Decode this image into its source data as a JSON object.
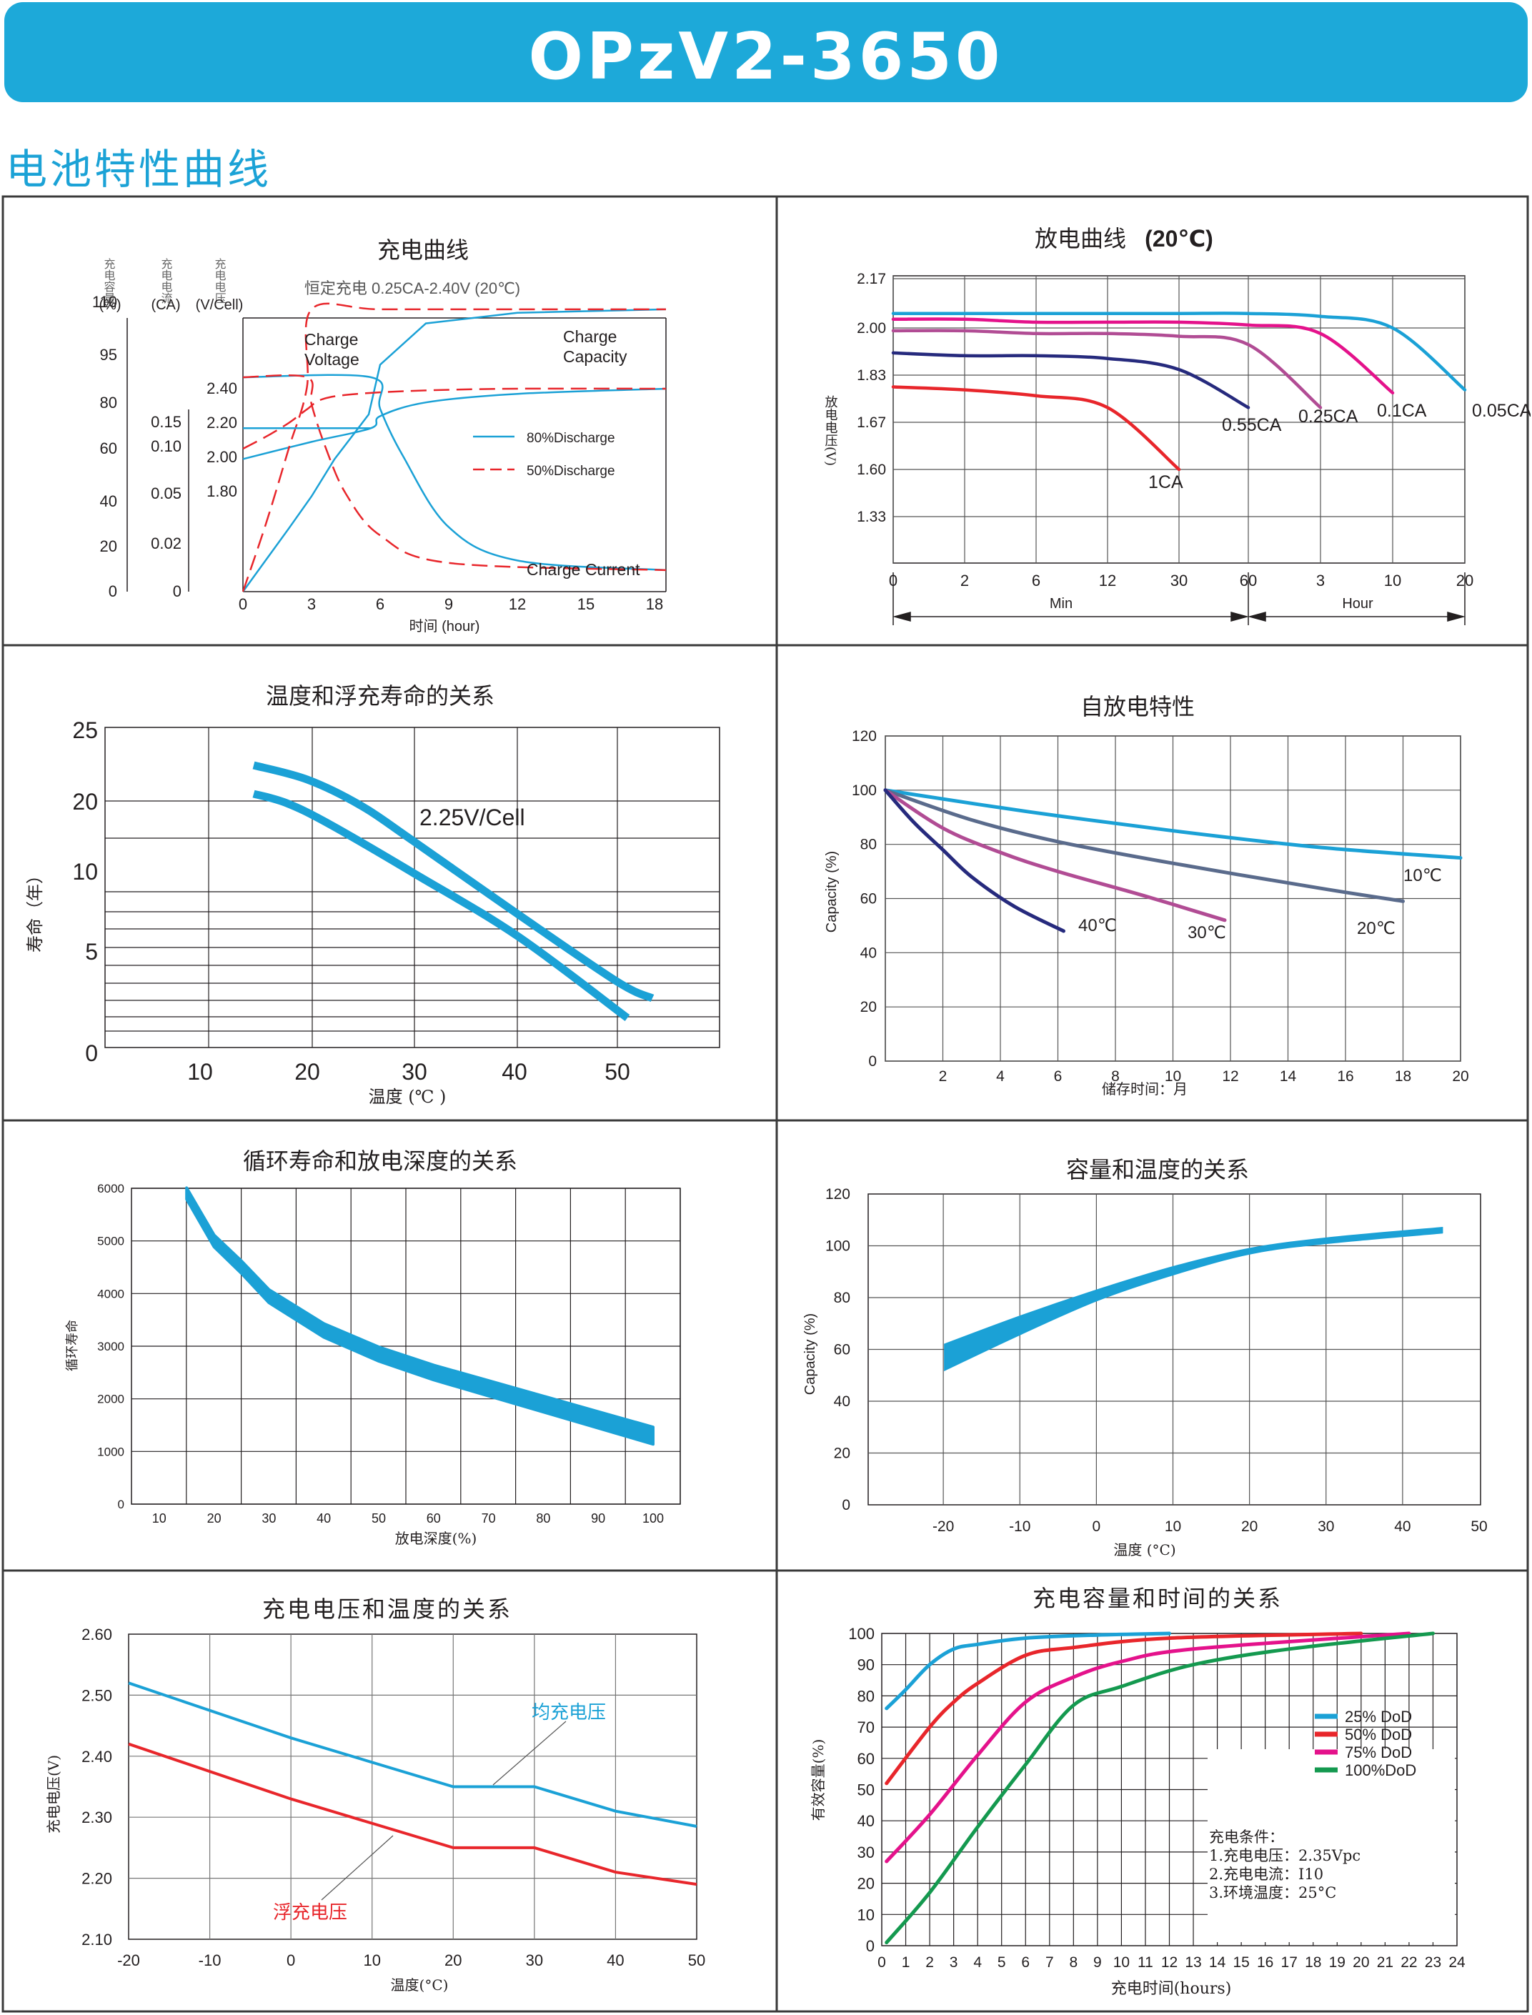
{
  "header": {
    "title": "OPzV2-3650"
  },
  "section": {
    "title": "电池特性曲线"
  },
  "colors": {
    "banner": "#1da9d9",
    "section_title": "#1ba2d6",
    "blue": "#1ba1d6",
    "red": "#e8262b",
    "magenta": "#e4128b",
    "green": "#14994f",
    "navy": "#262a7d",
    "purple": "#b14c94",
    "slate": "#5a6b8c"
  },
  "charts": {
    "charge": {
      "title": "充电曲线",
      "subtitle": "恒定充电 0.25CA-2.40V  (20℃)",
      "xlabel": "时间 (hour)",
      "axis_names": [
        "充电容量",
        "充电电流",
        "充电电压"
      ],
      "axis_units": [
        "(%)",
        "(CA)",
        "(V/Cell)"
      ],
      "cap_ticks": [
        "110",
        "95",
        "80",
        "60",
        "40",
        "20",
        "0"
      ],
      "cur_ticks": [
        "0.15",
        "0.10",
        "0.05",
        "0.02",
        "0"
      ],
      "volt_ticks": [
        "2.40",
        "2.20",
        "2.00",
        "1.80"
      ],
      "x_ticks": [
        "0",
        "3",
        "6",
        "9",
        "12",
        "15",
        "18"
      ],
      "ann_voltage": [
        "Charge",
        "Voltage"
      ],
      "ann_capacity": [
        "Charge",
        "Capacity"
      ],
      "ann_current": "Charge Current",
      "legend": [
        "80%Discharge",
        "50%Discharge"
      ]
    },
    "discharge": {
      "title": "放电曲线",
      "title_suffix": "(20℃)",
      "ylabel": "放电电压(V)",
      "y_ticks": [
        "2.17",
        "2.00",
        "1.83",
        "1.67",
        "1.60",
        "1.33"
      ],
      "x_ticks": [
        "0",
        "2",
        "6",
        "12",
        "30",
        "60",
        "3",
        "10",
        "20"
      ],
      "units": [
        "Min",
        "Hour"
      ],
      "curve_labels": [
        "0.05CA",
        "0.1CA",
        "0.25CA",
        "0.55CA",
        "1CA"
      ]
    },
    "float_life": {
      "title": "温度和浮充寿命的关系",
      "ylabel": "寿命（年）",
      "xlabel": "温度 (℃ )",
      "y_ticks": [
        "25",
        "20",
        "10",
        "5",
        "0"
      ],
      "x_ticks": [
        "10",
        "20",
        "30",
        "40",
        "50"
      ],
      "annotation": "2.25V/Cell"
    },
    "self_discharge": {
      "title": "自放电特性",
      "ylabel": "Capacity (%)",
      "xlabel": "储存时间：月",
      "y_ticks": [
        "120",
        "100",
        "80",
        "60",
        "40",
        "20",
        "0"
      ],
      "x_ticks": [
        "2",
        "4",
        "6",
        "8",
        "10",
        "12",
        "14",
        "16",
        "18",
        "20"
      ],
      "curve_labels": [
        "10℃",
        "20℃",
        "30℃",
        "40℃"
      ]
    },
    "cycle_life": {
      "title": "循环寿命和放电深度的关系",
      "ylabel": "循环寿命",
      "xlabel": "放电深度(%)",
      "y_ticks": [
        "6000",
        "5000",
        "4000",
        "3000",
        "2000",
        "1000",
        "0"
      ],
      "x_ticks": [
        "10",
        "20",
        "30",
        "40",
        "50",
        "60",
        "70",
        "80",
        "90",
        "100"
      ]
    },
    "capacity_temp": {
      "title": "容量和温度的关系",
      "ylabel": "Capacity (%)",
      "xlabel": "温度 (°C)",
      "y_ticks": [
        "120",
        "100",
        "80",
        "60",
        "40",
        "20",
        "0"
      ],
      "x_ticks": [
        "-20",
        "-10",
        "0",
        "10",
        "20",
        "30",
        "40",
        "50"
      ]
    },
    "voltage_temp": {
      "title": "充电电压和温度的关系",
      "ylabel": "充电电压(V)",
      "xlabel": "温度(°C)",
      "y_ticks": [
        "2.60",
        "2.50",
        "2.40",
        "2.30",
        "2.20",
        "2.10"
      ],
      "x_ticks": [
        "-20",
        "-10",
        "0",
        "10",
        "20",
        "30",
        "40",
        "50"
      ],
      "labels": [
        "均充电压",
        "浮充电压"
      ]
    },
    "capacity_time": {
      "title": "充电容量和时间的关系",
      "ylabel": "有效容量(%)",
      "xlabel": "充电时间(hours)",
      "y_ticks": [
        "100",
        "90",
        "80",
        "70",
        "60",
        "50",
        "40",
        "30",
        "20",
        "10",
        "0"
      ],
      "x_ticks": [
        "0",
        "1",
        "2",
        "3",
        "4",
        "5",
        "6",
        "7",
        "8",
        "9",
        "10",
        "11",
        "12",
        "13",
        "14",
        "15",
        "16",
        "17",
        "18",
        "19",
        "20",
        "21",
        "22",
        "23",
        "24"
      ],
      "legend": [
        "25%  DoD",
        "50%  DoD",
        "75%  DoD",
        "100%DoD"
      ],
      "conditions": [
        "充电条件：",
        "1.充电电压：2.35Vpc",
        "2.充电电流：I10",
        "3.环境温度：25°C"
      ]
    }
  },
  "chart_data": [
    {
      "type": "line",
      "title": "充电曲线",
      "subtitle": "恒定充电 0.25CA-2.40V  (20℃)",
      "xlabel": "时间 (hour)",
      "xlim": [
        0,
        18.5
      ],
      "series": [
        {
          "name": "80%Discharge",
          "quantity": "Charge Voltage (V/Cell)",
          "x": [
            0,
            3,
            5.6,
            6,
            8,
            12,
            18.5
          ],
          "values": [
            1.99,
            2.09,
            2.17,
            2.24,
            2.32,
            2.37,
            2.4
          ]
        },
        {
          "name": "80%Discharge",
          "quantity": "Charge Capacity (%)",
          "x": [
            0,
            1,
            2,
            3,
            4,
            5.5,
            6,
            8,
            12,
            18.5
          ],
          "values": [
            0,
            14,
            28,
            42,
            56,
            75,
            92,
            104,
            107,
            108
          ]
        },
        {
          "name": "80%Discharge",
          "quantity": "Charge Current (CA)",
          "x": [
            0,
            5.6,
            6,
            7,
            9,
            12,
            18.5
          ],
          "values": [
            0.25,
            0.25,
            0.18,
            0.09,
            0.03,
            0.013,
            0.009
          ]
        },
        {
          "name": "50%Discharge",
          "quantity": "Charge Voltage (V/Cell)",
          "x": [
            0,
            1,
            2,
            2.8,
            3.5,
            5,
            8,
            12,
            18.5
          ],
          "values": [
            2.05,
            2.12,
            2.2,
            2.28,
            2.34,
            2.37,
            2.39,
            2.4,
            2.4
          ]
        },
        {
          "name": "50%Discharge",
          "quantity": "Charge Capacity (%)",
          "x": [
            0,
            1,
            2,
            2.8,
            3,
            6,
            12,
            18.5
          ],
          "values": [
            0,
            30,
            60,
            85,
            108,
            108,
            108,
            108
          ]
        },
        {
          "name": "50%Discharge",
          "quantity": "Charge Current (CA)",
          "x": [
            0,
            2.8,
            3,
            3.6,
            4.5,
            6,
            9,
            18.5
          ],
          "values": [
            0.25,
            0.25,
            0.19,
            0.1,
            0.05,
            0.025,
            0.012,
            0.009
          ]
        }
      ]
    },
    {
      "type": "line",
      "title": "放电曲线 (20℃)",
      "ylabel": "放电电压(V)",
      "x_categories": [
        "0 Min",
        "2 Min",
        "6 Min",
        "12 Min",
        "30 Min",
        "60 Min",
        "3 Hour",
        "10 Hour",
        "20 Hour"
      ],
      "y_ticks": [
        2.17,
        2.0,
        1.83,
        1.67,
        1.6,
        1.33
      ],
      "series": [
        {
          "name": "0.05CA",
          "values": [
            2.05,
            2.05,
            2.05,
            2.05,
            2.05,
            2.05,
            2.04,
            2.0,
            1.78
          ]
        },
        {
          "name": "0.1CA",
          "values": [
            2.03,
            2.03,
            2.02,
            2.02,
            2.02,
            2.01,
            1.98,
            1.77
          ]
        },
        {
          "name": "0.25CA",
          "values": [
            1.99,
            1.99,
            1.98,
            1.98,
            1.97,
            1.94,
            1.72
          ]
        },
        {
          "name": "0.55CA",
          "values": [
            1.91,
            1.9,
            1.9,
            1.89,
            1.85,
            1.72
          ]
        },
        {
          "name": "1CA",
          "values": [
            1.79,
            1.78,
            1.76,
            1.72,
            1.6
          ]
        }
      ]
    },
    {
      "type": "line",
      "title": "温度和浮充寿命的关系",
      "xlabel": "温度 (℃ )",
      "ylabel": "寿命（年）",
      "annotation": "2.25V/Cell",
      "series": [
        {
          "name": "upper",
          "x": [
            15,
            20,
            25,
            30,
            40,
            50,
            53.5
          ],
          "values": [
            22.5,
            21.5,
            19.5,
            15.5,
            8.5,
            4.0,
            3.0
          ]
        },
        {
          "name": "lower",
          "x": [
            15,
            18,
            22,
            30,
            40,
            51
          ],
          "values": [
            20.5,
            19.8,
            17.5,
            12.0,
            7.0,
            1.8
          ]
        }
      ]
    },
    {
      "type": "line",
      "title": "自放电特性",
      "xlabel": "储存时间：月",
      "ylabel": "Capacity (%)",
      "ylim": [
        0,
        120
      ],
      "xlim": [
        0,
        20
      ],
      "series": [
        {
          "name": "10℃",
          "x": [
            0,
            5,
            10,
            15,
            20
          ],
          "values": [
            100,
            92,
            85,
            79,
            75
          ]
        },
        {
          "name": "20℃",
          "x": [
            0,
            3,
            6,
            10,
            15,
            18
          ],
          "values": [
            100,
            89,
            81,
            73,
            64,
            59
          ]
        },
        {
          "name": "30℃",
          "x": [
            0,
            2,
            4,
            6,
            9,
            11.8
          ],
          "values": [
            100,
            86,
            77,
            70,
            61,
            52
          ]
        },
        {
          "name": "40℃",
          "x": [
            0,
            1,
            2,
            3,
            4.5,
            6.2
          ],
          "values": [
            100,
            88,
            78,
            68,
            57,
            48
          ]
        }
      ]
    },
    {
      "type": "line",
      "title": "循环寿命和放电深度的关系",
      "xlabel": "放电深度(%)",
      "ylabel": "循环寿命",
      "ylim": [
        0,
        6000
      ],
      "x": [
        15,
        20,
        25,
        30,
        40,
        50,
        60,
        70,
        80,
        90,
        100
      ],
      "series": [
        {
          "values": [
            5900,
            5000,
            4500,
            3950,
            3300,
            2850,
            2500,
            2200,
            1900,
            1600,
            1300
          ]
        }
      ]
    },
    {
      "type": "area",
      "title": "容量和温度的关系",
      "xlabel": "温度 (°C)",
      "ylabel": "Capacity (%)",
      "ylim": [
        0,
        120
      ],
      "xlim": [
        -30,
        50
      ],
      "x": [
        -20,
        -10,
        0,
        10,
        20,
        30,
        45
      ],
      "series": [
        {
          "name": "upper",
          "values": [
            62,
            73,
            83,
            92,
            99,
            103,
            107
          ]
        },
        {
          "name": "lower",
          "values": [
            52,
            66,
            79,
            89,
            97,
            101,
            105
          ]
        }
      ]
    },
    {
      "type": "line",
      "title": "充电电压和温度的关系",
      "xlabel": "温度(°C)",
      "ylabel": "充电电压(V)",
      "ylim": [
        2.1,
        2.6
      ],
      "x": [
        -20,
        0,
        20,
        30,
        40,
        50
      ],
      "series": [
        {
          "name": "均充电压",
          "values": [
            2.52,
            2.43,
            2.35,
            2.35,
            2.31,
            2.285
          ]
        },
        {
          "name": "浮充电压",
          "values": [
            2.42,
            2.33,
            2.25,
            2.25,
            2.21,
            2.19
          ]
        }
      ]
    },
    {
      "type": "line",
      "title": "充电容量和时间的关系",
      "xlabel": "充电时间(hours)",
      "ylabel": "有效容量(%)",
      "ylim": [
        0,
        100
      ],
      "xlim": [
        0,
        24
      ],
      "series": [
        {
          "name": "25%  DoD",
          "x": [
            0.2,
            1,
            2,
            3,
            4,
            6,
            9,
            12
          ],
          "values": [
            76,
            82,
            90,
            95,
            96.5,
            98.5,
            99.5,
            100
          ]
        },
        {
          "name": "50%  DoD",
          "x": [
            0.2,
            2,
            3,
            4,
            6,
            8,
            12,
            20
          ],
          "values": [
            52,
            70,
            78,
            84,
            93,
            95.5,
            98.5,
            100
          ]
        },
        {
          "name": "75%  DoD",
          "x": [
            0.2,
            2,
            4,
            6,
            8,
            10,
            13,
            22
          ],
          "values": [
            27,
            42,
            61,
            78,
            86,
            91,
            95,
            100
          ]
        },
        {
          "name": "100%DoD",
          "x": [
            0.2,
            2,
            4,
            6,
            8,
            10,
            13,
            17,
            23
          ],
          "values": [
            1,
            17,
            38,
            58,
            77,
            83,
            90,
            95,
            100
          ]
        }
      ]
    }
  ]
}
